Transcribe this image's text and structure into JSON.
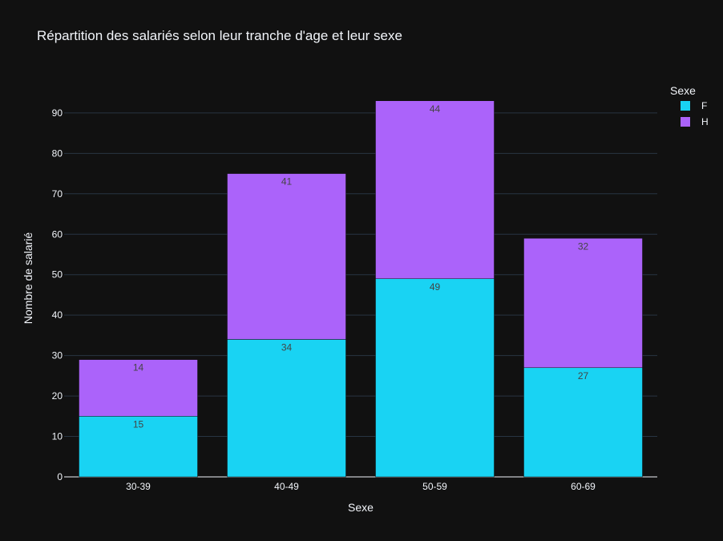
{
  "chart_data": {
    "type": "bar",
    "barmode": "stack",
    "title": "Répartition des salariés selon leur tranche d'age et leur sexe",
    "xlabel": "Sexe",
    "ylabel": "Nombre de salarié",
    "categories": [
      "30-39",
      "40-49",
      "50-59",
      "60-69"
    ],
    "series": [
      {
        "name": "F",
        "values": [
          15,
          34,
          49,
          27
        ],
        "color": "#19d3f3"
      },
      {
        "name": "H",
        "values": [
          14,
          41,
          44,
          32
        ],
        "color": "#ab63fa"
      }
    ],
    "ylim": [
      0,
      98.5
    ],
    "yticks": [
      0,
      10,
      20,
      30,
      40,
      50,
      60,
      70,
      80,
      90
    ],
    "grid": true,
    "legend": {
      "title": "Sexe",
      "position": "top-right"
    },
    "background": "#111111",
    "text_color": "#f2f5fa",
    "grid_color": "#283442",
    "data_label_color": "#444444"
  }
}
